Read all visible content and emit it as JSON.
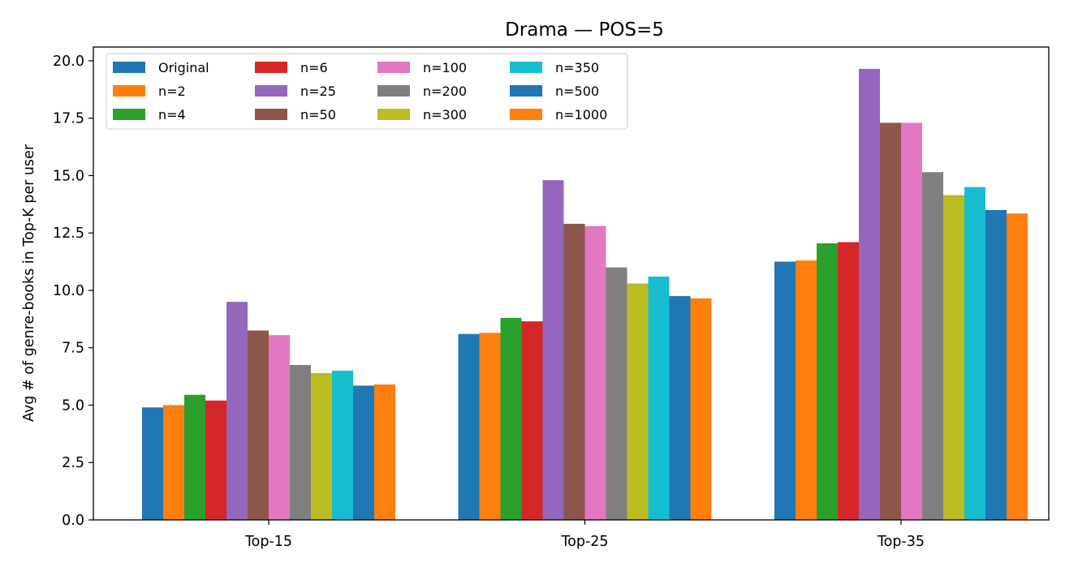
{
  "chart_data": {
    "type": "bar",
    "title": "Drama — POS=5",
    "xlabel": "",
    "ylabel": "Avg # of genre-books in Top-K per user",
    "categories": [
      "Top-15",
      "Top-25",
      "Top-35"
    ],
    "ylim": [
      0,
      20.6
    ],
    "yticks": [
      "0.0",
      "2.5",
      "5.0",
      "7.5",
      "10.0",
      "12.5",
      "15.0",
      "17.5",
      "20.0"
    ],
    "grid": false,
    "legend_placement": "upper-left",
    "legend_columns": 4,
    "series": [
      {
        "name": "Original",
        "color": "#1f77b4",
        "values": [
          4.9,
          8.1,
          11.25
        ]
      },
      {
        "name": "n=2",
        "color": "#ff7f0e",
        "values": [
          5.0,
          8.15,
          11.3
        ]
      },
      {
        "name": "n=4",
        "color": "#2ca02c",
        "values": [
          5.45,
          8.8,
          12.05
        ]
      },
      {
        "name": "n=6",
        "color": "#d62728",
        "values": [
          5.2,
          8.65,
          12.1
        ]
      },
      {
        "name": "n=25",
        "color": "#9467bd",
        "values": [
          9.5,
          14.8,
          19.65
        ]
      },
      {
        "name": "n=50",
        "color": "#8c564b",
        "values": [
          8.25,
          12.9,
          17.3
        ]
      },
      {
        "name": "n=100",
        "color": "#e377c2",
        "values": [
          8.05,
          12.8,
          17.3
        ]
      },
      {
        "name": "n=200",
        "color": "#7f7f7f",
        "values": [
          6.75,
          11.0,
          15.15
        ]
      },
      {
        "name": "n=300",
        "color": "#bcbd22",
        "values": [
          6.4,
          10.3,
          14.15
        ]
      },
      {
        "name": "n=350",
        "color": "#17becf",
        "values": [
          6.5,
          10.6,
          14.5
        ]
      },
      {
        "name": "n=500",
        "color": "#1f77b4",
        "values": [
          5.85,
          9.75,
          13.5
        ]
      },
      {
        "name": "n=1000",
        "color": "#ff7f0e",
        "values": [
          5.9,
          9.65,
          13.35
        ]
      }
    ]
  }
}
